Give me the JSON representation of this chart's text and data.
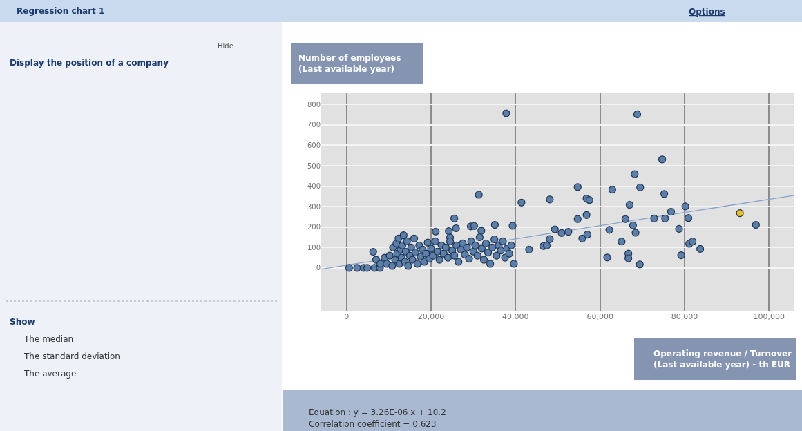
{
  "chart_data": {
    "type": "scatter",
    "title": "Regression chart 1",
    "ylabel": "Number of employees\n(Last available year)",
    "xlabel": "Operating revenue / Turnover\n(Last available year) - th EUR",
    "xlim": [
      -6000,
      106000
    ],
    "ylim": [
      -210,
      855
    ],
    "xticks": [
      0,
      {
        "value": 20000,
        "label": "20,000"
      },
      {
        "value": 40000,
        "label": "40,000"
      },
      {
        "value": 60000,
        "label": "60,000"
      },
      {
        "value": 80000,
        "label": "80,000"
      },
      {
        "value": 100000,
        "label": "100,000"
      }
    ],
    "yticks": [
      0,
      100,
      200,
      300,
      400,
      500,
      600,
      700,
      800
    ],
    "grid": true,
    "series": [
      {
        "marker": "circle",
        "color": "#5b7fa8",
        "x": [
          600,
          2500,
          4100,
          4900,
          6600,
          7900,
          6300,
          7000,
          8000,
          9000,
          9500,
          10200,
          10800,
          11000,
          11500,
          11800,
          12000,
          12300,
          12500,
          12800,
          13000,
          13200,
          13500,
          13800,
          14000,
          14300,
          14600,
          15000,
          15300,
          15600,
          16000,
          16300,
          16800,
          17200,
          17500,
          18000,
          18400,
          18800,
          19200,
          19600,
          20000,
          20500,
          21000,
          21100,
          21500,
          22000,
          22500,
          23000,
          23500,
          24000,
          24200,
          24500,
          24500,
          25000,
          25500,
          25500,
          25900,
          26000,
          26500,
          27000,
          27500,
          28000,
          28500,
          29000,
          29400,
          29500,
          30000,
          30200,
          30500,
          31000,
          31300,
          31500,
          31900,
          32000,
          32500,
          33000,
          33500,
          34000,
          34500,
          35000,
          35100,
          35500,
          36000,
          36500,
          37000,
          37500,
          37800,
          38000,
          38500,
          39000,
          39300,
          39600,
          41400,
          43200,
          46600,
          47400,
          48100,
          48100,
          49300,
          50900,
          52500,
          54700,
          54700,
          55800,
          56800,
          56800,
          57000,
          57500,
          61700,
          62200,
          62900,
          65100,
          66000,
          66700,
          66700,
          67000,
          67800,
          68200,
          68400,
          68800,
          69400,
          69500,
          72800,
          74700,
          75200,
          75400,
          76800,
          78700,
          79200,
          80200,
          80900,
          81100,
          81900,
          83700,
          96900
        ],
        "values": [
          0,
          0,
          0,
          0,
          0,
          0,
          79,
          40,
          20,
          50,
          20,
          60,
          10,
          100,
          40,
          120,
          70,
          144,
          20,
          90,
          50,
          110,
          160,
          30,
          80,
          130,
          10,
          60,
          100,
          40,
          144,
          75,
          20,
          110,
          55,
          90,
          30,
          70,
          124,
          45,
          95,
          60,
          130,
          178,
          80,
          40,
          110,
          70,
          100,
          50,
          180,
          149,
          130,
          85,
          60,
          242,
          194,
          110,
          30,
          90,
          120,
          65,
          100,
          45,
          203,
          130,
          80,
          205,
          110,
          60,
          358,
          150,
          182,
          95,
          40,
          120,
          75,
          20,
          100,
          140,
          211,
          60,
          110,
          85,
          130,
          50,
          757,
          95,
          70,
          110,
          206,
          20,
          320,
          90,
          107,
          110,
          335,
          141,
          189,
          171,
          177,
          396,
          239,
          144,
          340,
          259,
          163,
          332,
          51,
          186,
          383,
          129,
          239,
          70,
          47,
          309,
          208,
          459,
          172,
          752,
          17,
          394,
          242,
          531,
          362,
          242,
          275,
          191,
          62,
          301,
          244,
          118,
          129,
          93,
          211
        ]
      },
      {
        "marker": "circle",
        "color": "#f0c020",
        "x": [
          93100
        ],
        "values": [
          268
        ]
      },
      {
        "type": "line",
        "color": "#86a3cc",
        "x": [
          -6000,
          106000
        ],
        "values": [
          -6,
          355
        ]
      }
    ],
    "annotations": [
      "Hide",
      "Display the position of a company",
      "Show",
      "The median",
      "The standard deviation",
      "The average",
      "Options",
      "Equation : y = 3.26E-06 x + 10.2",
      "Correlation coefficient = 0.623"
    ]
  }
}
